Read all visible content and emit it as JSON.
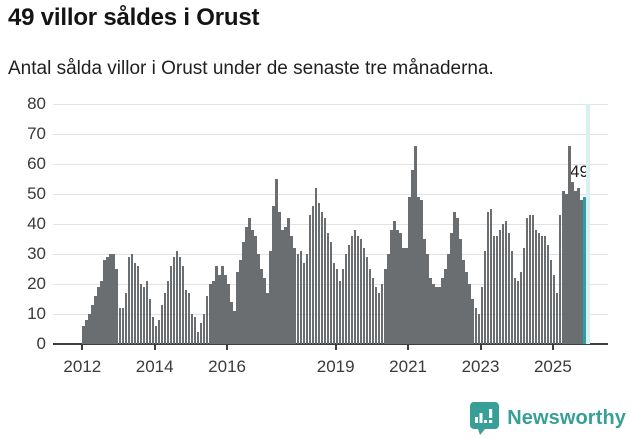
{
  "header": {
    "title": "49 villor såldes i Orust",
    "subtitle": "Antal sålda villor i Orust under de senaste tre månaderna."
  },
  "annotation": {
    "value_label": "49"
  },
  "footer": {
    "brand": "Newsworthy"
  },
  "colors": {
    "background": "#ffffff",
    "bar": "#6a6e71",
    "highlight_bar": "#299fa7",
    "highlight_band": "#d9f0f3",
    "gridline": "#e2e2e2",
    "axis": "#3f3f3f",
    "text_dark": "#141414",
    "text_axis": "#3a3a3a",
    "brand_teal": "#379f97"
  },
  "chart_data": {
    "type": "bar",
    "title": "49 villor såldes i Orust",
    "subtitle": "Antal sålda villor i Orust under de senaste tre månaderna.",
    "x_start_month": "2012-01",
    "x_end_month": "2025-11",
    "x_tick_years": [
      2012,
      2014,
      2016,
      2019,
      2021,
      2023,
      2025
    ],
    "y_ticks": [
      0,
      10,
      20,
      30,
      40,
      50,
      60,
      70,
      80
    ],
    "ylim": [
      0,
      80
    ],
    "grid": true,
    "legend": false,
    "highlight_last_value": 49,
    "values": [
      6,
      8,
      10,
      13,
      16,
      19,
      21,
      28,
      29,
      30,
      30,
      25,
      12,
      12,
      17,
      29,
      30,
      27,
      26,
      20,
      19,
      21,
      15,
      9,
      6,
      8,
      13,
      17,
      21,
      26,
      29,
      31,
      29,
      26,
      18,
      17,
      10,
      9,
      4,
      7,
      10,
      16,
      20,
      21,
      26,
      23,
      26,
      23,
      20,
      14,
      11,
      24,
      28,
      34,
      39,
      42,
      38,
      36,
      30,
      25,
      22,
      17,
      31,
      46,
      55,
      44,
      38,
      39,
      42,
      36,
      32,
      30,
      31,
      27,
      30,
      43,
      46,
      52,
      47,
      44,
      42,
      37,
      34,
      27,
      25,
      21,
      25,
      30,
      33,
      36,
      38,
      36,
      35,
      32,
      29,
      25,
      22,
      19,
      17,
      20,
      25,
      30,
      38,
      41,
      38,
      37,
      32,
      32,
      49,
      58,
      66,
      49,
      48,
      35,
      30,
      22,
      20,
      19,
      19,
      22,
      25,
      30,
      37,
      44,
      42,
      35,
      28,
      24,
      20,
      15,
      12,
      10,
      19,
      31,
      44,
      45,
      36,
      36,
      38,
      40,
      41,
      37,
      31,
      22,
      21,
      24,
      32,
      42,
      43,
      43,
      38,
      37,
      36,
      36,
      33,
      28,
      23,
      17,
      43,
      51,
      50,
      66,
      54,
      51,
      52,
      48,
      49
    ]
  }
}
